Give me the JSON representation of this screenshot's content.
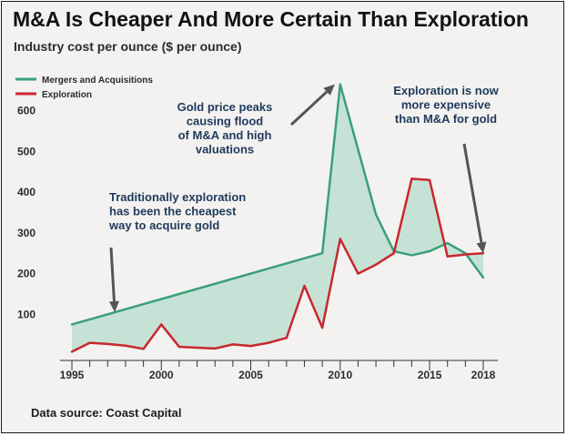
{
  "title": "M&A Is Cheaper And More Certain Than Exploration",
  "subtitle": "Industry cost per ounce ($ per ounce)",
  "source": "Data source: Coast Capital",
  "colors": {
    "ma": "#3aa07a",
    "exploration": "#c9272e",
    "fill": "#c6e2d7",
    "annotation": "#1f3a5c",
    "arrow": "#555555"
  },
  "chart_data": {
    "type": "line",
    "title": "M&A Is Cheaper And More Certain Than Exploration",
    "ylabel": "Industry cost per ounce ($ per ounce)",
    "xlim": [
      1995,
      2018.5
    ],
    "ylim": [
      0,
      700
    ],
    "xticks": [
      1995,
      2000,
      2005,
      2010,
      2015,
      2018
    ],
    "yticks": [
      100,
      200,
      300,
      400,
      500,
      600
    ],
    "grid": false,
    "legend_position": "top-left",
    "shaded_between_series": true,
    "series": [
      {
        "name": "Mergers and Acquisitions",
        "color": "#3aa07a",
        "x": [
          1995,
          2009,
          2010,
          2012,
          2013,
          2014,
          2015,
          2016,
          2017,
          2018
        ],
        "y": [
          75,
          250,
          665,
          345,
          255,
          245,
          255,
          275,
          250,
          190
        ]
      },
      {
        "name": "Exploration",
        "color": "#c9272e",
        "x": [
          1995,
          1996,
          1997,
          1998,
          1999,
          2000,
          2001,
          2002,
          2003,
          2004,
          2005,
          2006,
          2007,
          2008,
          2009,
          2010,
          2011,
          2012,
          2013,
          2014,
          2015,
          2016,
          2017,
          2018
        ],
        "y": [
          8,
          30,
          27,
          23,
          15,
          75,
          20,
          18,
          16,
          26,
          22,
          30,
          42,
          170,
          67,
          285,
          200,
          222,
          250,
          433,
          430,
          242,
          247,
          250
        ]
      }
    ],
    "annotations": [
      {
        "lines": [
          "Traditionally exploration",
          "has been the cheapest",
          "way to acquire gold"
        ],
        "points_to": {
          "x": 1997.4,
          "y": 105
        }
      },
      {
        "lines": [
          "Gold price peaks",
          "causing flood",
          "of M&A and high",
          "valuations"
        ],
        "points_to": {
          "x": 2009.7,
          "y": 665
        }
      },
      {
        "lines": [
          "Exploration is now",
          "more expensive",
          "than M&A for gold"
        ],
        "points_to": {
          "x": 2018,
          "y": 250
        }
      }
    ]
  }
}
